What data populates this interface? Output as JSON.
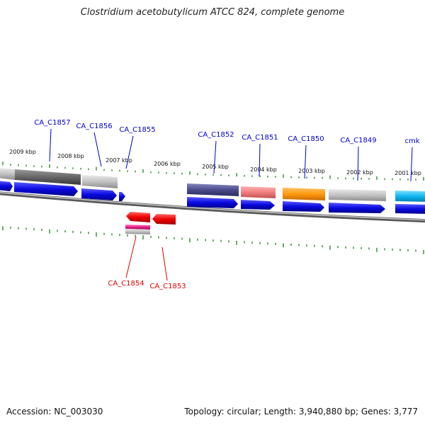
{
  "title": "Clostridium acetobutylicum ATCC 824, complete genome",
  "footer": {
    "accession": "Accession: NC_003030",
    "stats": "Topology: circular; Length: 3,940,880 bp; Genes: 3,777"
  },
  "scale_labels": [
    "2009 kbp",
    "2008 kbp",
    "2007 kbp",
    "2006 kbp",
    "2005 kbp",
    "2004 kbp",
    "2003 kbp",
    "2002 kbp",
    "2001 kbp"
  ],
  "forward_gene_labels": [
    "CA_C1857",
    "CA_C1856",
    "CA_C1855",
    "CA_C1852",
    "CA_C1851",
    "CA_C1850",
    "CA_C1849",
    "cmk"
  ],
  "reverse_gene_labels": [
    "CA_C1854",
    "CA_C1853"
  ],
  "colors": {
    "forward_label": "#0000cc",
    "reverse_label": "#dd0000",
    "tick": "#2e8b2e",
    "backbone": "#8a8a8a",
    "cds": "#0a0ae0",
    "reverse_cds": "#ee1111"
  }
}
